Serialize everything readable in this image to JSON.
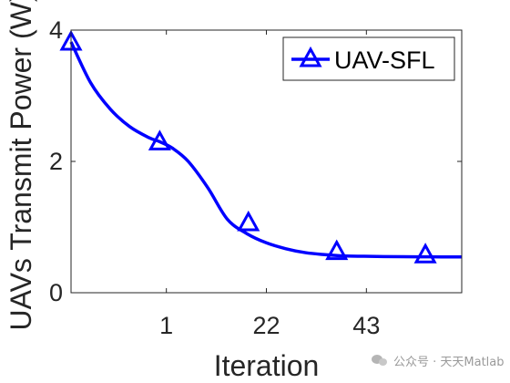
{
  "chart_data": {
    "type": "line",
    "title": "",
    "xlabel": "Iteration",
    "ylabel": "UAVs Transmit Power (W)",
    "xlim": [
      0,
      1
    ],
    "ylim": [
      0,
      4
    ],
    "x_ticks": [
      {
        "pos": 0.244,
        "label": "1"
      },
      {
        "pos": 0.5,
        "label": "22"
      },
      {
        "pos": 0.756,
        "label": "43"
      }
    ],
    "y_ticks": [
      {
        "value": 0,
        "label": "0"
      },
      {
        "value": 2,
        "label": "2"
      },
      {
        "value": 4,
        "label": "4"
      }
    ],
    "grid": false,
    "legend_position": "top-right",
    "series": [
      {
        "name": "UAV-SFL",
        "color": "#0000ff",
        "marker": "triangle",
        "curve_x": [
          0.0,
          0.05,
          0.1,
          0.15,
          0.2,
          0.227,
          0.26,
          0.3,
          0.35,
          0.4,
          0.45,
          0.5,
          0.55,
          0.6,
          0.65,
          0.7,
          0.75,
          0.8,
          0.85,
          0.9,
          0.95,
          1.0
        ],
        "curve_y": [
          3.82,
          3.2,
          2.8,
          2.53,
          2.36,
          2.3,
          2.2,
          2.0,
          1.6,
          1.12,
          0.9,
          0.76,
          0.67,
          0.61,
          0.58,
          0.56,
          0.555,
          0.55,
          0.548,
          0.547,
          0.546,
          0.546
        ],
        "marker_x": [
          0.0,
          0.227,
          0.454,
          0.68,
          0.907
        ],
        "marker_y": [
          3.82,
          2.3,
          1.07,
          0.63,
          0.58
        ]
      }
    ]
  },
  "watermark": {
    "icon": "wechat-icon",
    "text": "公众号 · 天天Matlab"
  }
}
